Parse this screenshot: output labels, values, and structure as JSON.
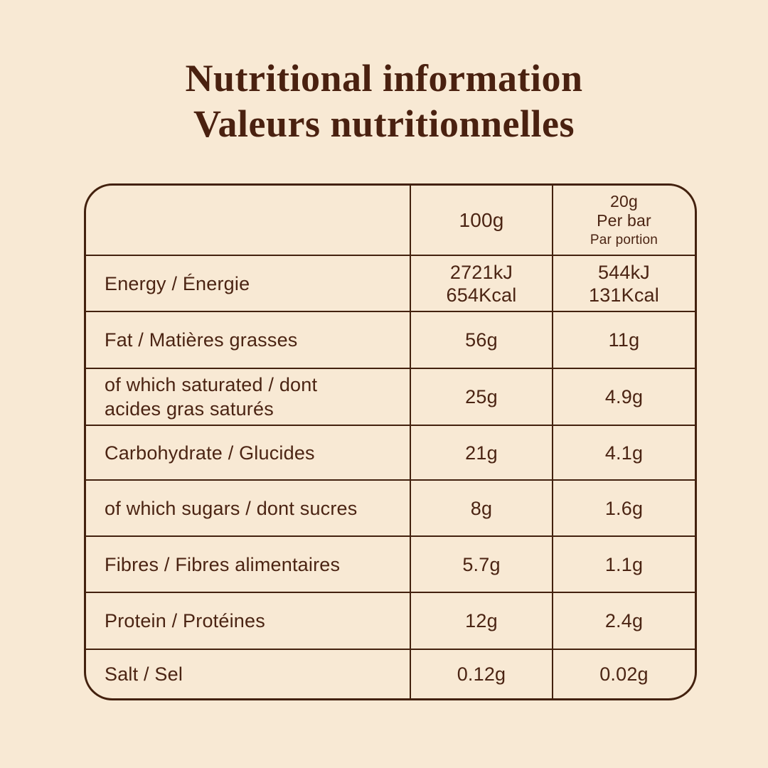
{
  "colors": {
    "background": "#f8e9d4",
    "text": "#4b2413",
    "border": "#43210e",
    "title": "#4a2110"
  },
  "title": {
    "line1": "Nutritional information",
    "line2": "Valeurs nutritionnelles"
  },
  "table": {
    "header": {
      "col_100g": "100g",
      "col_per_bar_size": "20g",
      "col_per_bar_en": "Per bar",
      "col_per_bar_fr": "Par portion"
    },
    "rows": [
      {
        "label": "Energy / Énergie",
        "per_100g": "2721kJ\n654Kcal",
        "per_bar": "544kJ\n131Kcal"
      },
      {
        "label": "Fat / Matières grasses",
        "per_100g": "56g",
        "per_bar": "11g"
      },
      {
        "label": "of which saturated / dont acides gras saturés",
        "per_100g": "25g",
        "per_bar": "4.9g"
      },
      {
        "label": "Carbohydrate / Glucides",
        "per_100g": "21g",
        "per_bar": "4.1g"
      },
      {
        "label": "of which sugars / dont sucres",
        "per_100g": "8g",
        "per_bar": "1.6g"
      },
      {
        "label": "Fibres / Fibres alimentaires",
        "per_100g": "5.7g",
        "per_bar": "1.1g"
      },
      {
        "label": "Protein / Protéines",
        "per_100g": "12g",
        "per_bar": "2.4g"
      },
      {
        "label": "Salt / Sel",
        "per_100g": "0.12g",
        "per_bar": "0.02g"
      }
    ]
  }
}
